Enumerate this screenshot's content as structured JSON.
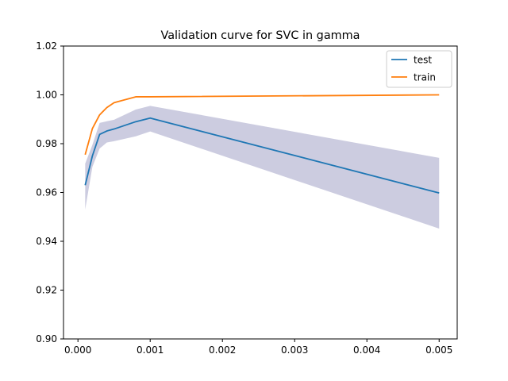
{
  "chart_data": {
    "type": "line",
    "title": "Validation curve for SVC in gamma",
    "xlabel": "",
    "ylabel": "",
    "xlim": [
      -0.0002,
      0.00525
    ],
    "ylim": [
      0.9,
      1.02
    ],
    "x_ticks": [
      0.0,
      0.001,
      0.002,
      0.003,
      0.004,
      0.005
    ],
    "x_tick_labels": [
      "0.000",
      "0.001",
      "0.002",
      "0.003",
      "0.004",
      "0.005"
    ],
    "y_ticks": [
      0.9,
      0.92,
      0.94,
      0.96,
      0.98,
      1.0,
      1.02
    ],
    "y_tick_labels": [
      "0.90",
      "0.92",
      "0.94",
      "0.96",
      "0.98",
      "1.00",
      "1.02"
    ],
    "grid": false,
    "legend_position": "top-right",
    "series": [
      {
        "name": "test",
        "color": "#1f77b4",
        "x": [
          0.0001,
          0.0002,
          0.0003,
          0.0004,
          0.0005,
          0.0008,
          0.001,
          0.005
        ],
        "y": [
          0.963,
          0.975,
          0.9838,
          0.9852,
          0.986,
          0.989,
          0.9905,
          0.9598
        ]
      },
      {
        "name": "train",
        "color": "#ff7f0e",
        "x": [
          0.0001,
          0.0002,
          0.0003,
          0.0004,
          0.0005,
          0.0008,
          0.001,
          0.005
        ],
        "y": [
          0.9755,
          0.9862,
          0.9918,
          0.9948,
          0.9968,
          0.9992,
          0.9992,
          1.0
        ]
      }
    ],
    "band": {
      "series": "test",
      "color": "#191970",
      "opacity": 0.22,
      "x": [
        0.0001,
        0.0002,
        0.0003,
        0.0004,
        0.0005,
        0.0008,
        0.001,
        0.005
      ],
      "lower": [
        0.953,
        0.9705,
        0.978,
        0.9805,
        0.981,
        0.983,
        0.985,
        0.9452
      ],
      "upper": [
        0.9718,
        0.9795,
        0.9885,
        0.9892,
        0.9898,
        0.994,
        0.9955,
        0.9742
      ]
    }
  }
}
